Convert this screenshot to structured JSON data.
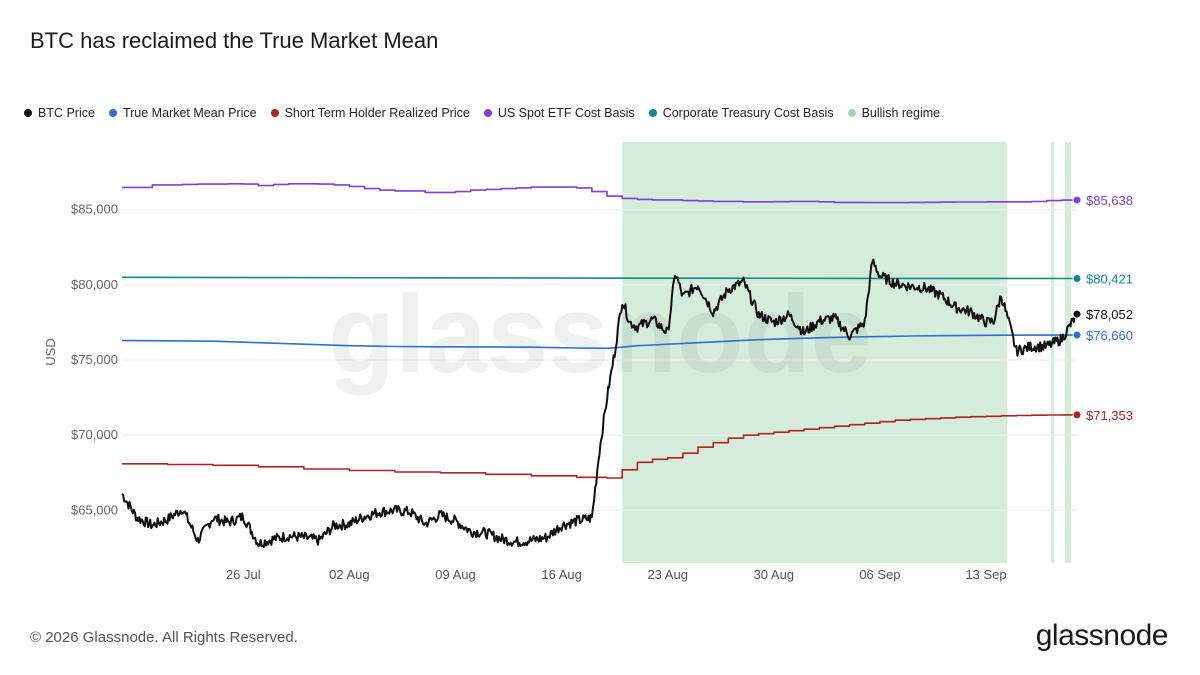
{
  "title": "BTC has reclaimed the True Market Mean",
  "legend": [
    {
      "label": "BTC Price",
      "color": "#111111"
    },
    {
      "label": "True Market Mean Price",
      "color": "#2f6fd6"
    },
    {
      "label": "Short Term Holder Realized Price",
      "color": "#b22222"
    },
    {
      "label": "US Spot ETF Cost Basis",
      "color": "#7b3fe4"
    },
    {
      "label": "Corporate Treasury Cost Basis",
      "color": "#138a8a"
    },
    {
      "label": "Bullish regime",
      "color": "#9fd8b0"
    }
  ],
  "footer": {
    "copyright": "© 2026 Glassnode. All Rights Reserved.",
    "logo": "glassnode"
  },
  "watermark": "glassnode",
  "chart_data": {
    "type": "line",
    "title": "BTC has reclaimed the True Market Mean",
    "ylabel": "USD",
    "xlabel": "",
    "ylim": [
      61500,
      89500
    ],
    "y_ticks": [
      "$65,000",
      "$70,000",
      "$75,000",
      "$80,000",
      "$85,000"
    ],
    "y_tick_values": [
      65000,
      70000,
      75000,
      80000,
      85000
    ],
    "x_ticks": [
      "26 Jul",
      "02 Aug",
      "09 Aug",
      "16 Aug",
      "23 Aug",
      "30 Aug",
      "06 Sep",
      "13 Sep"
    ],
    "x_tick_days": [
      8,
      15,
      22,
      29,
      36,
      43,
      50,
      57
    ],
    "x_day_range": [
      0,
      63
    ],
    "grid": true,
    "legend_position": "top-left",
    "end_labels": [
      {
        "series": "US Spot ETF Cost Basis",
        "text": "$85,638",
        "value": 85638,
        "color": "#7b3fe4"
      },
      {
        "series": "Corporate Treasury Cost Basis",
        "text": "$80,421",
        "value": 80421,
        "color": "#138a8a"
      },
      {
        "series": "BTC Price",
        "text": "$78,052",
        "value": 78052,
        "color": "#111111"
      },
      {
        "series": "True Market Mean Price",
        "text": "$76,660",
        "value": 76660,
        "color": "#2f6fd6"
      },
      {
        "series": "Short Term Holder Realized Price",
        "text": "$71,353",
        "value": 71353,
        "color": "#b22222"
      }
    ],
    "regimes": [
      {
        "name": "Bullish regime",
        "start_day": 33.0,
        "end_day": 58.4
      },
      {
        "name": "Bullish regime",
        "start_day": 61.3,
        "end_day": 61.5
      },
      {
        "name": "Bullish regime",
        "start_day": 62.2,
        "end_day": 62.6
      }
    ],
    "series": [
      {
        "name": "US Spot ETF Cost Basis",
        "color": "#7b3fe4",
        "x": [
          0,
          1,
          2,
          3,
          4,
          5,
          6,
          7,
          8,
          9,
          10,
          11,
          12,
          13,
          14,
          15,
          16,
          17,
          18,
          19,
          20,
          21,
          22,
          23,
          24,
          25,
          26,
          27,
          28,
          29,
          30,
          31,
          32,
          33,
          34,
          35,
          36,
          37,
          38,
          39,
          40,
          41,
          42,
          43,
          44,
          45,
          46,
          47,
          48,
          49,
          50,
          51,
          52,
          53,
          54,
          55,
          56,
          57,
          58,
          59,
          60,
          61,
          62,
          63
        ],
        "values": [
          86480,
          86480,
          86650,
          86650,
          86680,
          86700,
          86700,
          86720,
          86700,
          86600,
          86680,
          86720,
          86720,
          86700,
          86650,
          86550,
          86400,
          86300,
          86250,
          86250,
          86150,
          86150,
          86200,
          86300,
          86350,
          86400,
          86450,
          86500,
          86500,
          86500,
          86450,
          86200,
          85900,
          85750,
          85680,
          85650,
          85650,
          85600,
          85580,
          85550,
          85550,
          85520,
          85520,
          85530,
          85550,
          85550,
          85520,
          85480,
          85480,
          85470,
          85470,
          85470,
          85480,
          85490,
          85500,
          85510,
          85510,
          85520,
          85520,
          85520,
          85540,
          85600,
          85638,
          85638
        ]
      },
      {
        "name": "Corporate Treasury Cost Basis",
        "color": "#138a8a",
        "x": [
          0,
          10,
          20,
          30,
          40,
          50,
          60,
          63
        ],
        "values": [
          80500,
          80480,
          80470,
          80450,
          80440,
          80430,
          80425,
          80421
        ]
      },
      {
        "name": "True Market Mean Price",
        "color": "#2f6fd6",
        "x": [
          0,
          3,
          6,
          9,
          12,
          15,
          18,
          21,
          24,
          27,
          30,
          32,
          33,
          34,
          35,
          36,
          38,
          40,
          42,
          44,
          46,
          48,
          50,
          52,
          54,
          56,
          58,
          60,
          62,
          63
        ],
        "values": [
          76300,
          76280,
          76250,
          76150,
          76050,
          75950,
          75900,
          75880,
          75870,
          75850,
          75800,
          75780,
          75850,
          75950,
          76000,
          76050,
          76150,
          76250,
          76350,
          76420,
          76480,
          76530,
          76560,
          76600,
          76620,
          76640,
          76650,
          76655,
          76658,
          76660
        ]
      },
      {
        "name": "Short Term Holder Realized Price",
        "color": "#b22222",
        "x": [
          0,
          3,
          6,
          9,
          12,
          15,
          18,
          21,
          24,
          27,
          30,
          32,
          33,
          34,
          35,
          36,
          37,
          38,
          39,
          40,
          41,
          42,
          43,
          44,
          45,
          46,
          47,
          48,
          49,
          50,
          51,
          52,
          53,
          54,
          55,
          56,
          57,
          58,
          59,
          60,
          61,
          62,
          63
        ],
        "values": [
          68100,
          68050,
          68000,
          67900,
          67750,
          67650,
          67550,
          67500,
          67400,
          67300,
          67200,
          67150,
          67700,
          68200,
          68400,
          68500,
          68800,
          69200,
          69500,
          69800,
          70000,
          70100,
          70200,
          70300,
          70400,
          70500,
          70600,
          70700,
          70800,
          70900,
          71000,
          71050,
          71100,
          71150,
          71200,
          71230,
          71260,
          71290,
          71310,
          71330,
          71340,
          71350,
          71353
        ]
      },
      {
        "name": "BTC Price",
        "color": "#111111",
        "x": [
          0,
          1,
          2,
          3,
          4,
          5,
          6,
          7,
          8,
          9,
          10,
          11,
          12,
          13,
          14,
          15,
          16,
          17,
          18,
          19,
          20,
          21,
          22,
          23,
          24,
          25,
          26,
          27,
          28,
          29,
          30,
          31,
          31.5,
          32,
          32.5,
          33,
          33.5,
          34,
          35,
          36,
          36.5,
          37,
          38,
          39,
          40,
          41,
          42,
          43,
          44,
          45,
          46,
          47,
          48,
          49,
          49.5,
          50,
          51,
          52,
          53,
          54,
          55,
          56,
          57,
          57.5,
          58,
          58.5,
          59,
          60,
          61,
          62,
          63
        ],
        "values": [
          66100,
          64500,
          64000,
          64400,
          65100,
          63000,
          64500,
          64200,
          64600,
          62800,
          63100,
          63300,
          63200,
          63000,
          64000,
          64100,
          64600,
          64900,
          65000,
          64900,
          64100,
          64700,
          64300,
          63600,
          63500,
          63100,
          62900,
          63000,
          63200,
          64000,
          64300,
          64500,
          69000,
          72500,
          75500,
          79000,
          77500,
          77200,
          77700,
          76800,
          80800,
          79200,
          80000,
          78200,
          79700,
          80200,
          78000,
          77500,
          78000,
          76800,
          77600,
          77800,
          76600,
          77500,
          81600,
          80600,
          80100,
          79900,
          79800,
          79300,
          78500,
          78200,
          77500,
          77600,
          79300,
          77500,
          75600,
          75900,
          75900,
          76400,
          78052
        ]
      }
    ]
  }
}
